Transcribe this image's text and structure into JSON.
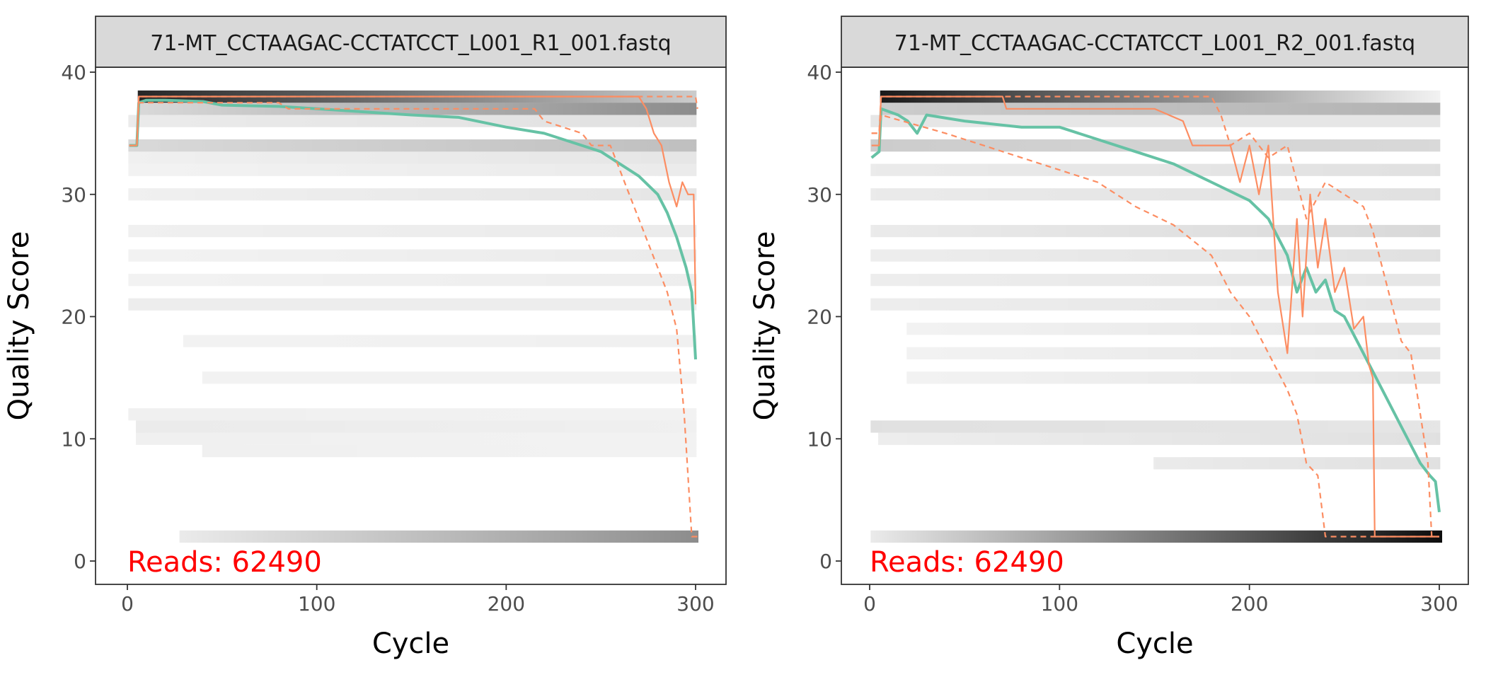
{
  "chart_data": [
    {
      "type": "heatmap+line",
      "title": "71-MT_CCTAAGAC-CCTATCCT_L001_R1_001.fastq",
      "xlabel": "Cycle",
      "ylabel": "Quality Score",
      "xlim": [
        -10,
        315
      ],
      "ylim": [
        -2,
        40
      ],
      "xticks": [
        0,
        100,
        200,
        300
      ],
      "yticks": [
        0,
        10,
        20,
        30,
        40
      ],
      "annotation": "Reads:  62490",
      "colors": {
        "mean": "#66C2A5",
        "quantile": "#FC8D62",
        "annotation": "#FF0000"
      },
      "bands": [
        {
          "q": 38,
          "from": 6,
          "to": 300,
          "dark": 0.85,
          "light": 0.2
        },
        {
          "q": 37,
          "from": 6,
          "to": 300,
          "dark": 0.15,
          "light": 0.45
        },
        {
          "q": 36,
          "from": 1,
          "to": 300,
          "dark": 0.08,
          "light": 0.12
        },
        {
          "q": 34,
          "from": 1,
          "to": 300,
          "dark": 0.15,
          "light": 0.25
        },
        {
          "q": 33,
          "from": 1,
          "to": 300,
          "dark": 0.06,
          "light": 0.1
        },
        {
          "q": 32,
          "from": 1,
          "to": 300,
          "dark": 0.05,
          "light": 0.08
        },
        {
          "q": 30,
          "from": 1,
          "to": 300,
          "dark": 0.06,
          "light": 0.1
        },
        {
          "q": 27,
          "from": 1,
          "to": 300,
          "dark": 0.06,
          "light": 0.08
        },
        {
          "q": 25,
          "from": 1,
          "to": 300,
          "dark": 0.05,
          "light": 0.08
        },
        {
          "q": 23,
          "from": 1,
          "to": 300,
          "dark": 0.05,
          "light": 0.07
        },
        {
          "q": 21,
          "from": 1,
          "to": 300,
          "dark": 0.07,
          "light": 0.07
        },
        {
          "q": 18,
          "from": 30,
          "to": 300,
          "dark": 0.05,
          "light": 0.06
        },
        {
          "q": 15,
          "from": 40,
          "to": 300,
          "dark": 0.05,
          "light": 0.05
        },
        {
          "q": 12,
          "from": 1,
          "to": 300,
          "dark": 0.06,
          "light": 0.05
        },
        {
          "q": 11,
          "from": 5,
          "to": 300,
          "dark": 0.08,
          "light": 0.06
        },
        {
          "q": 10,
          "from": 5,
          "to": 300,
          "dark": 0.06,
          "light": 0.05
        },
        {
          "q": 9,
          "from": 40,
          "to": 300,
          "dark": 0.06,
          "light": 0.05
        },
        {
          "q": 2,
          "from": 28,
          "to": 301,
          "dark": 0.08,
          "light": 0.45
        }
      ],
      "series": [
        {
          "name": "mean",
          "x": [
            1,
            5,
            6,
            10,
            20,
            40,
            50,
            80,
            100,
            150,
            175,
            200,
            220,
            240,
            250,
            260,
            270,
            280,
            285,
            290,
            295,
            298,
            300
          ],
          "y": [
            34,
            34,
            37.5,
            37.7,
            37.7,
            37.6,
            37.3,
            37.2,
            37,
            36.5,
            36.3,
            35.5,
            35,
            34,
            33.5,
            32.5,
            31.5,
            30,
            28.5,
            26.5,
            24,
            22,
            16.5
          ]
        },
        {
          "name": "median",
          "x": [
            1,
            5,
            6,
            270,
            274,
            278,
            282,
            286,
            290,
            293,
            296,
            299,
            300
          ],
          "y": [
            34,
            34,
            38,
            38,
            37,
            35,
            34,
            31,
            29,
            31,
            30,
            30,
            21
          ]
        },
        {
          "name": "q25",
          "x": [
            1,
            5,
            6,
            80,
            85,
            215,
            220,
            240,
            245,
            255,
            265,
            270,
            275,
            280,
            285,
            290,
            294,
            298,
            301
          ],
          "y": [
            34,
            34,
            37.5,
            37.5,
            37,
            37,
            36,
            35,
            34,
            34,
            30,
            28,
            26,
            24,
            22,
            19,
            12,
            2,
            2
          ]
        },
        {
          "name": "q75",
          "x": [
            1,
            5,
            6,
            300,
            301
          ],
          "y": [
            34,
            34,
            38,
            38,
            37
          ]
        }
      ]
    },
    {
      "type": "heatmap+line",
      "title": "71-MT_CCTAAGAC-CCTATCCT_L001_R2_001.fastq",
      "xlabel": "Cycle",
      "ylabel": "Quality Score",
      "xlim": [
        -10,
        315
      ],
      "ylim": [
        -2,
        40
      ],
      "xticks": [
        0,
        100,
        200,
        300
      ],
      "yticks": [
        0,
        10,
        20,
        30,
        40
      ],
      "annotation": "Reads:  62490",
      "colors": {
        "mean": "#66C2A5",
        "quantile": "#FC8D62",
        "annotation": "#FF0000"
      },
      "bands": [
        {
          "q": 38,
          "from": 6,
          "to": 300,
          "dark": 0.9,
          "light": 0.05
        },
        {
          "q": 37,
          "from": 6,
          "to": 300,
          "dark": 0.2,
          "light": 0.3
        },
        {
          "q": 36,
          "from": 1,
          "to": 300,
          "dark": 0.1,
          "light": 0.1
        },
        {
          "q": 34,
          "from": 1,
          "to": 300,
          "dark": 0.2,
          "light": 0.15
        },
        {
          "q": 32,
          "from": 1,
          "to": 300,
          "dark": 0.08,
          "light": 0.12
        },
        {
          "q": 30,
          "from": 1,
          "to": 300,
          "dark": 0.08,
          "light": 0.12
        },
        {
          "q": 27,
          "from": 1,
          "to": 300,
          "dark": 0.08,
          "light": 0.15
        },
        {
          "q": 25,
          "from": 1,
          "to": 300,
          "dark": 0.07,
          "light": 0.12
        },
        {
          "q": 23,
          "from": 1,
          "to": 300,
          "dark": 0.07,
          "light": 0.1
        },
        {
          "q": 21,
          "from": 1,
          "to": 300,
          "dark": 0.07,
          "light": 0.1
        },
        {
          "q": 19,
          "from": 20,
          "to": 300,
          "dark": 0.05,
          "light": 0.1
        },
        {
          "q": 17,
          "from": 20,
          "to": 300,
          "dark": 0.05,
          "light": 0.1
        },
        {
          "q": 15,
          "from": 20,
          "to": 300,
          "dark": 0.05,
          "light": 0.1
        },
        {
          "q": 11,
          "from": 1,
          "to": 300,
          "dark": 0.12,
          "light": 0.1
        },
        {
          "q": 10,
          "from": 5,
          "to": 300,
          "dark": 0.07,
          "light": 0.12
        },
        {
          "q": 8,
          "from": 150,
          "to": 300,
          "dark": 0.08,
          "light": 0.12
        },
        {
          "q": 2,
          "from": 1,
          "to": 301,
          "dark": 0.08,
          "light": 0.95
        }
      ],
      "series": [
        {
          "name": "mean",
          "x": [
            1,
            5,
            6,
            15,
            20,
            25,
            30,
            50,
            80,
            100,
            120,
            140,
            160,
            180,
            200,
            210,
            215,
            220,
            225,
            230,
            235,
            240,
            245,
            250,
            260,
            265,
            270,
            280,
            290,
            295,
            298,
            300
          ],
          "y": [
            33,
            33.5,
            37,
            36.5,
            36,
            35,
            36.5,
            36,
            35.5,
            35.5,
            34.5,
            33.5,
            32.5,
            31,
            29.5,
            28,
            26.5,
            25,
            22,
            24,
            22,
            23,
            20.5,
            20,
            17,
            15.5,
            14,
            11,
            8,
            7,
            6.5,
            4
          ]
        },
        {
          "name": "median",
          "x": [
            1,
            5,
            6,
            70,
            72,
            150,
            165,
            170,
            190,
            195,
            200,
            205,
            210,
            215,
            220,
            225,
            228,
            232,
            236,
            240,
            245,
            250,
            255,
            260,
            263,
            265,
            266,
            300
          ],
          "y": [
            34,
            34,
            38,
            38,
            37,
            37,
            36,
            34,
            34,
            31,
            34,
            30,
            34,
            22,
            17,
            28,
            20,
            30,
            24,
            28,
            22,
            24,
            19,
            20,
            16,
            15,
            2,
            2
          ]
        },
        {
          "name": "q25",
          "x": [
            1,
            5,
            6,
            40,
            60,
            80,
            100,
            120,
            140,
            160,
            180,
            190,
            200,
            210,
            220,
            225,
            230,
            236,
            240,
            300
          ],
          "y": [
            35,
            35,
            36.5,
            35,
            34,
            33,
            32,
            31,
            29,
            27.5,
            25,
            22,
            20,
            17,
            14,
            12,
            8,
            7,
            2,
            2
          ]
        },
        {
          "name": "q75",
          "x": [
            1,
            5,
            6,
            180,
            185,
            190,
            200,
            210,
            220,
            230,
            240,
            250,
            260,
            265,
            270,
            280,
            285,
            290,
            294,
            296,
            300
          ],
          "y": [
            35,
            35,
            38,
            38,
            36.5,
            34,
            35,
            33,
            34,
            28,
            31,
            30,
            29,
            27,
            24,
            18,
            17,
            12,
            8,
            2,
            2
          ]
        }
      ]
    }
  ]
}
